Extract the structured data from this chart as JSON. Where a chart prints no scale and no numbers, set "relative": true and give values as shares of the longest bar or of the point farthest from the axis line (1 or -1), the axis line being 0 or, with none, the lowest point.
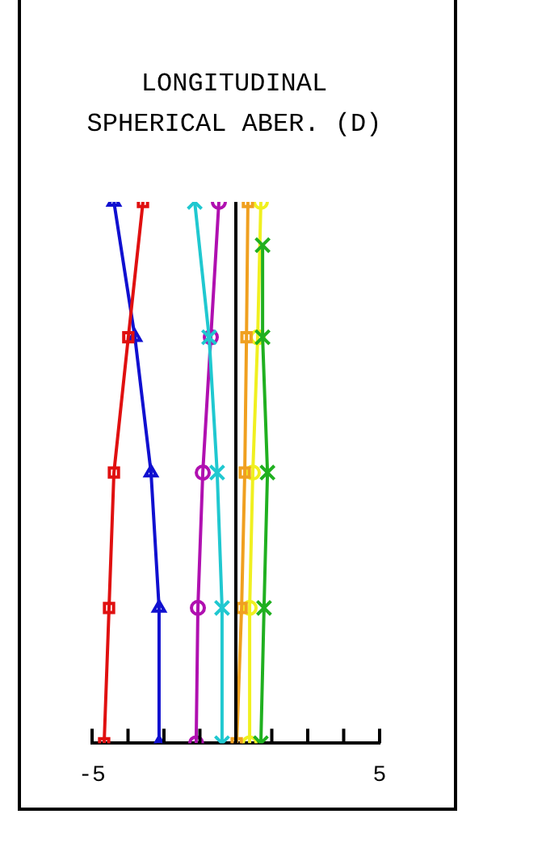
{
  "chart_data": {
    "type": "line",
    "title": "LONGITUDINAL SPHERICAL ABER. (D)",
    "xlim": [
      -5,
      5
    ],
    "xticks": [
      -5,
      {
        "value": -3.75,
        "label": null
      },
      {
        "value": -2.5,
        "label": null
      },
      {
        "value": -1.25,
        "label": null
      },
      {
        "value": 0,
        "label": null
      },
      {
        "value": 1.25,
        "label": null
      },
      {
        "value": 2.5,
        "label": null
      },
      {
        "value": 3.75,
        "label": null
      },
      5
    ],
    "relative": true,
    "ref_lines": [
      {
        "axis": "x",
        "value": 0,
        "color": "#000000"
      }
    ],
    "tick_labels": "x",
    "legend": false,
    "line_style": "solid",
    "series": [
      {
        "color": "#e01010",
        "marker": "square",
        "x": [
          -4.58,
          -4.41,
          -4.24,
          -3.74,
          -3.23
        ],
        "values": [
          0,
          0.25,
          0.5,
          0.75,
          1
        ]
      },
      {
        "color": "#1010d0",
        "marker": "triangle",
        "x": [
          -2.67,
          -2.67,
          -2.95,
          -3.51,
          -4.24
        ],
        "values": [
          0,
          0.25,
          0.5,
          0.75,
          1
        ]
      },
      {
        "color": "#b010b0",
        "marker": "circle",
        "x": [
          -1.38,
          -1.32,
          -1.15,
          -0.87,
          -0.59
        ],
        "values": [
          0,
          0.25,
          0.5,
          0.75,
          1
        ]
      },
      {
        "color": "#20c8d0",
        "marker": "cross",
        "x": [
          -0.48,
          -0.48,
          -0.65,
          -0.93,
          -1.43
        ],
        "values": [
          0,
          0.25,
          0.5,
          0.75,
          1
        ]
      },
      {
        "color": "#f0a020",
        "marker": "square",
        "x": [
          0.03,
          0.2,
          0.31,
          0.37,
          0.42
        ],
        "values": [
          0,
          0.25,
          0.5,
          0.75,
          1
        ]
      },
      {
        "color": "#f0f020",
        "marker": "circle",
        "x": [
          0.48,
          0.48,
          0.59,
          0.76,
          0.87
        ],
        "values": [
          0,
          0.25,
          0.5,
          0.75,
          1
        ]
      },
      {
        "color": "#20b020",
        "marker": "cross",
        "x": [
          0.87,
          0.98,
          1.1,
          0.93,
          0.93
        ],
        "values": [
          0,
          0.25,
          0.5,
          0.75,
          0.92
        ]
      }
    ]
  }
}
